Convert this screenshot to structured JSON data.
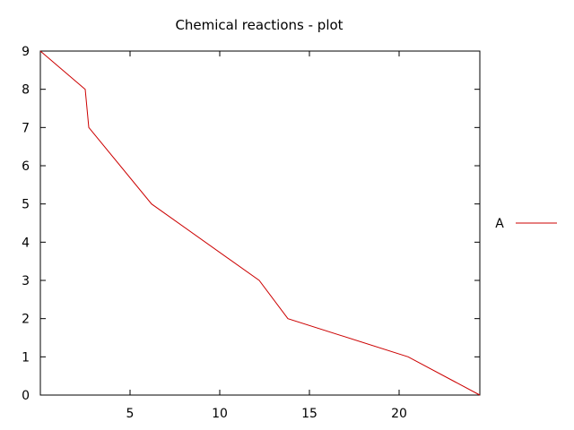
{
  "chart_data": {
    "type": "line",
    "title": "Chemical reactions - plot",
    "xlabel": "",
    "ylabel": "",
    "xlim": [
      0,
      24.5
    ],
    "ylim": [
      0,
      9
    ],
    "x_ticks": [
      5,
      10,
      15,
      20
    ],
    "y_ticks": [
      0,
      1,
      2,
      3,
      4,
      5,
      6,
      7,
      8,
      9
    ],
    "grid": false,
    "legend_position": "right",
    "series": [
      {
        "name": "A",
        "color": "#cc0000",
        "x": [
          0,
          2.5,
          2.7,
          6.2,
          12.2,
          13.8,
          20.5,
          24.5
        ],
        "y": [
          9,
          8,
          7,
          5,
          3,
          2,
          1,
          0
        ]
      }
    ]
  }
}
